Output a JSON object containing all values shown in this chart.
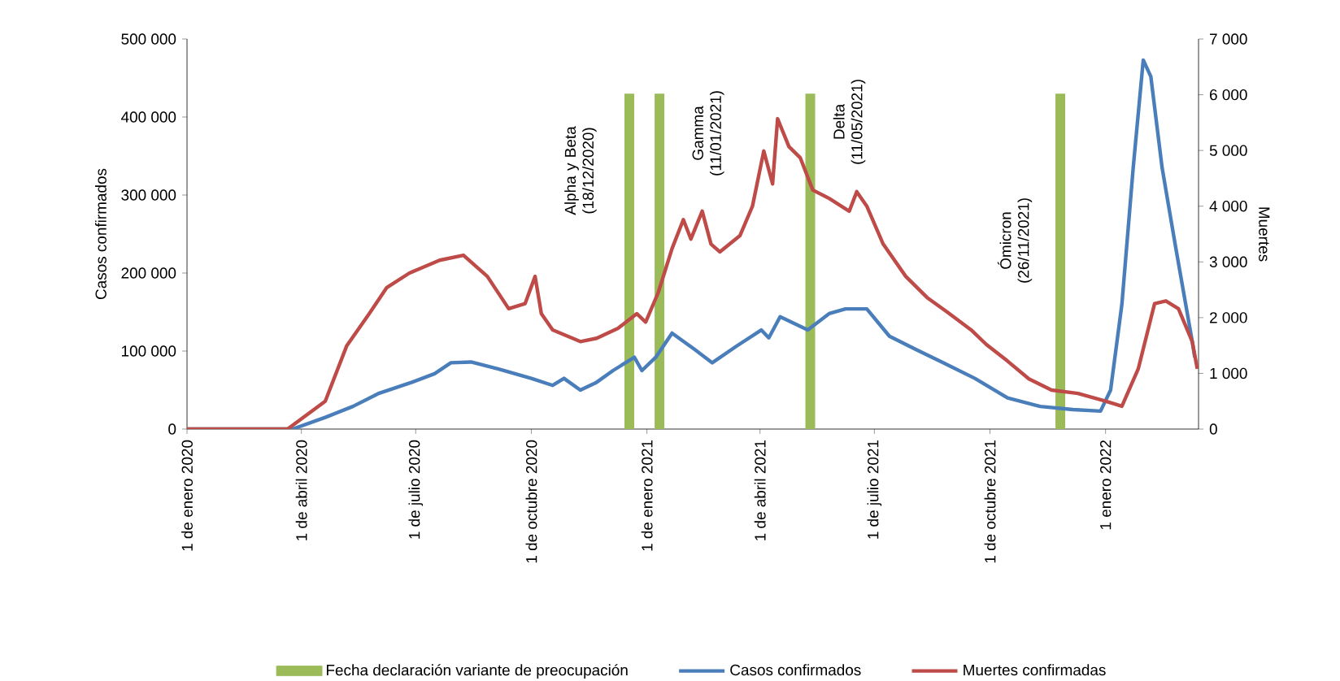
{
  "chart_data": {
    "type": "line",
    "ylabel": "Casos confirmados",
    "y2label": "Muertes",
    "series": [
      {
        "name": "Fecha declaración variante de preocupación",
        "type": "bar",
        "color": "#9bbb59",
        "x": [
          "2020-12-18",
          "2021-01-11",
          "2021-05-11",
          "2021-11-26"
        ],
        "values": [
          430000,
          430000,
          430000,
          430000
        ]
      },
      {
        "name": "Casos confirmados",
        "color": "#4a7ebb",
        "x": [
          "2020-01-01",
          "2020-03-25",
          "2020-04-20",
          "2020-05-12",
          "2020-06-02",
          "2020-06-28",
          "2020-07-16",
          "2020-07-29",
          "2020-08-14",
          "2020-09-05",
          "2020-10-01",
          "2020-10-18",
          "2020-10-27",
          "2020-11-09",
          "2020-11-22",
          "2020-12-05",
          "2020-12-22",
          "2020-12-28",
          "2021-01-08",
          "2021-01-21",
          "2021-02-08",
          "2021-02-22",
          "2021-03-13",
          "2021-04-02",
          "2021-04-08",
          "2021-04-17",
          "2021-05-09",
          "2021-05-26",
          "2021-06-08",
          "2021-06-25",
          "2021-07-13",
          "2021-08-03",
          "2021-08-25",
          "2021-09-19",
          "2021-10-15",
          "2021-11-10",
          "2021-12-06",
          "2021-12-28",
          "2022-01-05",
          "2022-01-14",
          "2022-01-23",
          "2022-01-31",
          "2022-02-06",
          "2022-02-15",
          "2022-02-26",
          "2022-03-11",
          "2022-03-13"
        ],
        "values": [
          0,
          0,
          15000,
          29000,
          46000,
          60000,
          71000,
          85000,
          86000,
          77000,
          65000,
          56000,
          65000,
          50000,
          60000,
          75000,
          92000,
          75000,
          92000,
          123000,
          102000,
          85000,
          106000,
          127000,
          117000,
          144000,
          127000,
          148000,
          154000,
          154000,
          119000,
          102000,
          85000,
          65000,
          40000,
          29000,
          25000,
          23000,
          50000,
          160000,
          335000,
          473000,
          452000,
          335000,
          231000,
          112000,
          92000
        ]
      },
      {
        "name": "Muertes confirmadas",
        "color": "#be4b48",
        "axis": "y2",
        "x": [
          "2020-01-01",
          "2020-03-21",
          "2020-04-20",
          "2020-05-07",
          "2020-05-25",
          "2020-06-08",
          "2020-06-26",
          "2020-07-20",
          "2020-08-08",
          "2020-08-27",
          "2020-09-13",
          "2020-09-26",
          "2020-10-04",
          "2020-10-09",
          "2020-10-18",
          "2020-11-09",
          "2020-11-22",
          "2020-12-09",
          "2020-12-24",
          "2020-12-31",
          "2021-01-10",
          "2021-01-21",
          "2021-01-30",
          "2021-02-05",
          "2021-02-14",
          "2021-02-21",
          "2021-02-28",
          "2021-03-16",
          "2021-03-26",
          "2021-04-04",
          "2021-04-11",
          "2021-04-15",
          "2021-04-24",
          "2021-05-03",
          "2021-05-13",
          "2021-05-26",
          "2021-06-11",
          "2021-06-17",
          "2021-06-25",
          "2021-07-08",
          "2021-07-26",
          "2021-08-12",
          "2021-08-28",
          "2021-09-16",
          "2021-09-28",
          "2021-10-15",
          "2021-11-01",
          "2021-11-19",
          "2021-12-10",
          "2022-01-01",
          "2022-01-14",
          "2022-01-27",
          "2022-02-09",
          "2022-02-18",
          "2022-02-28",
          "2022-03-11",
          "2022-03-15"
        ],
        "values": [
          0,
          0,
          500,
          1490,
          2070,
          2540,
          2800,
          3030,
          3120,
          2740,
          2160,
          2250,
          2740,
          2070,
          1780,
          1570,
          1630,
          1810,
          2070,
          1920,
          2450,
          3240,
          3760,
          3410,
          3910,
          3320,
          3180,
          3470,
          4000,
          4990,
          4400,
          5570,
          5070,
          4870,
          4290,
          4140,
          3910,
          4260,
          4000,
          3320,
          2740,
          2360,
          2100,
          1780,
          1520,
          1220,
          900,
          700,
          640,
          500,
          410,
          1080,
          2250,
          2300,
          2160,
          1570,
          1080
        ]
      }
    ],
    "xlim": [
      "2020-01-01",
      "2022-03-16"
    ],
    "xticks": [
      {
        "value": "2020-01-01",
        "label": "1 de enero 2020"
      },
      {
        "value": "2020-04-01",
        "label": "1 de abril 2020"
      },
      {
        "value": "2020-07-01",
        "label": "1 de julio 2020"
      },
      {
        "value": "2020-10-01",
        "label": "1 de octubre 2020"
      },
      {
        "value": "2021-01-01",
        "label": "1 de enero 2021"
      },
      {
        "value": "2021-04-01",
        "label": "1 de abril 2021"
      },
      {
        "value": "2021-07-01",
        "label": "1 de julio 2021"
      },
      {
        "value": "2021-10-01",
        "label": "1 de octubre 2021"
      },
      {
        "value": "2022-01-01",
        "label": "1 enero 2022"
      }
    ],
    "ylim": [
      0,
      500000
    ],
    "yticks": [
      0,
      {
        "value": 100000,
        "label": "100 000"
      },
      {
        "value": 200000,
        "label": "200 000"
      },
      {
        "value": 300000,
        "label": "300 000"
      },
      {
        "value": 400000,
        "label": "400 000"
      },
      {
        "value": 500000,
        "label": "500 000"
      }
    ],
    "y2lim": [
      0,
      7000
    ],
    "y2ticks": [
      0,
      {
        "value": 1000,
        "label": "1 000"
      },
      {
        "value": 2000,
        "label": "2 000"
      },
      {
        "value": 3000,
        "label": "3 000"
      },
      {
        "value": 4000,
        "label": "4 000"
      },
      {
        "value": 5000,
        "label": "5 000"
      },
      {
        "value": 6000,
        "label": "6 000"
      },
      {
        "value": 7000,
        "label": "7 000"
      }
    ],
    "legend": "bottom",
    "annotations": [
      "Alpha y Beta (18/12/2020)",
      "Gamma (11/01/2021)",
      "Delta (11/05/2021)",
      "Ómicron (26/11/2021)"
    ]
  }
}
